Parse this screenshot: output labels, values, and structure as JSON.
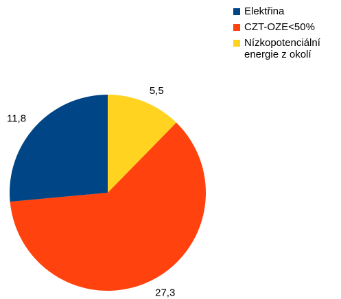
{
  "chart_data": {
    "type": "pie",
    "categories": [
      "Elektřina",
      "CZT-OZE<50%",
      "Nízkopotenciální energie z okolí"
    ],
    "values": [
      11.8,
      27.3,
      5.5
    ],
    "data_labels": [
      "11,8",
      "27,3",
      "5,5"
    ],
    "colors": [
      "#004586",
      "#ff420e",
      "#ffd320"
    ],
    "legend_position": "top-right"
  }
}
